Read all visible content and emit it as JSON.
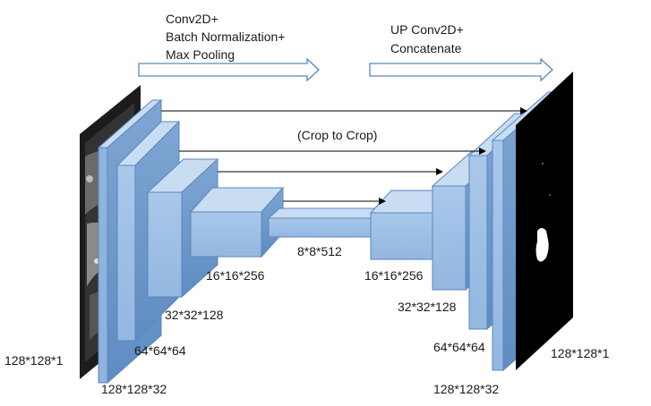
{
  "header": {
    "encoder_lines": [
      "Conv2D+",
      "Batch Normalization+",
      "Max Pooling"
    ],
    "decoder_lines": [
      "UP Conv2D+",
      "Concatenate"
    ]
  },
  "skip_label": "(Crop to Crop)",
  "input_label": "128*128*1",
  "output_label": "128*128*1",
  "encoder_labels": [
    "128*128*32",
    "64*64*64",
    "32*32*128",
    "16*16*256"
  ],
  "bottleneck_label": "8*8*512",
  "decoder_labels": [
    "16*16*256",
    "32*32*128",
    "64*64*64",
    "128*128*32"
  ],
  "colors": {
    "block_front": "#9ec0e6",
    "block_top": "#c8dcf2",
    "block_side": "#6f99c9",
    "block_stroke": "#5b86bf",
    "arrow_outline": "#5b86bf",
    "ct_image": "#1c1c1c",
    "mask_image": "#000000"
  },
  "icons": {
    "ct_image": "ct-scan-image",
    "mask_image": "segmentation-mask-image"
  }
}
